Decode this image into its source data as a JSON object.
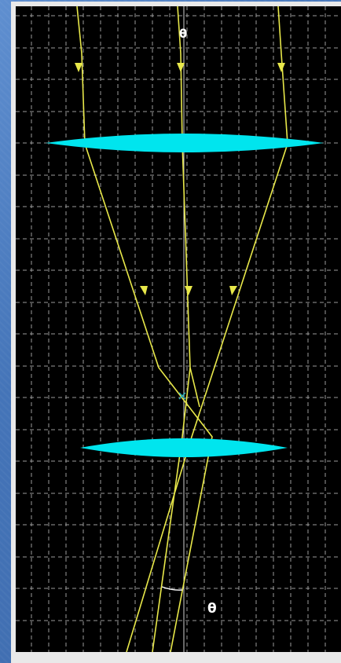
{
  "diagram": {
    "type": "ray-optics-simulation",
    "symbols": {
      "top_angle": "θ",
      "bottom_angle": "θ"
    },
    "colors": {
      "background": "#000000",
      "grid": "#9a9a9a",
      "lens": "#00e5ee",
      "ray": "#e8e84a",
      "axis": "#d0d0d0",
      "focus_marker": "#2ab0b8",
      "slide_background": "#4d7cc0",
      "frame": "#e9e9e9"
    },
    "icons": {
      "focus_marker": "cross-marker-icon",
      "ray_arrow": "arrow-down-icon"
    }
  }
}
